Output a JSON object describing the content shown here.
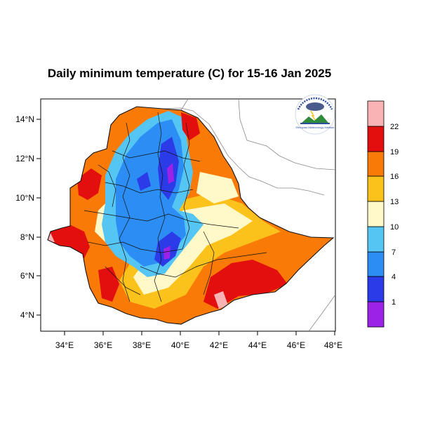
{
  "title": "Daily minimum temperature (C) for 15-16 Jan 2025",
  "axes": {
    "x_ticks": [
      "34°E",
      "36°E",
      "38°E",
      "40°E",
      "42°E",
      "44°E",
      "46°E",
      "48°E"
    ],
    "y_ticks": [
      "14°N",
      "12°N",
      "10°N",
      "8°N",
      "6°N",
      "4°N"
    ]
  },
  "colorbar": {
    "labels": [
      "1",
      "4",
      "7",
      "10",
      "13",
      "16",
      "19",
      "22"
    ],
    "colors": [
      "#9b22e6",
      "#2b3be8",
      "#2c8ef4",
      "#55c6f4",
      "#fff8c8",
      "#fcc21c",
      "#f97a06",
      "#e20f0e",
      "#fab3b5"
    ]
  },
  "logo": {
    "text": "Ethiopian Meteorology Institute"
  }
}
